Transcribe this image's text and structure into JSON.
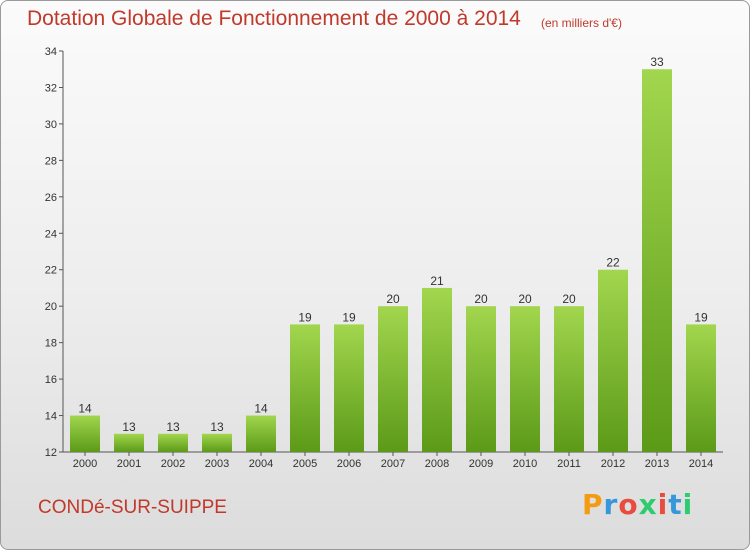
{
  "header": {
    "title": "Dotation Globale de Fonctionnement de 2000 à 2014",
    "unit": "(en milliers d'€)"
  },
  "footer": {
    "city": "CONDé-SUR-SUIPPE",
    "logo": "Proxiti",
    "logo_colors": [
      "#f39c12",
      "#3498db",
      "#e74c3c",
      "#2ecc71",
      "#e74c3c",
      "#3498db",
      "#2ecc71"
    ]
  },
  "colors": {
    "bar_top": "#a2d64e",
    "bar_bottom": "#5b9a18",
    "axis": "#555555",
    "text": "#333333",
    "brand": "#c0392b"
  },
  "chart_data": {
    "type": "bar",
    "title": "Dotation Globale de Fonctionnement de 2000 à 2014",
    "subtitle": "(en milliers d'€)",
    "categories": [
      "2000",
      "2001",
      "2002",
      "2003",
      "2004",
      "2005",
      "2006",
      "2007",
      "2008",
      "2009",
      "2010",
      "2011",
      "2012",
      "2013",
      "2014"
    ],
    "values": [
      14,
      13,
      13,
      13,
      14,
      19,
      19,
      20,
      21,
      20,
      20,
      20,
      22,
      33,
      19
    ],
    "ylim": [
      12,
      34
    ],
    "yticks": [
      12,
      14,
      16,
      18,
      20,
      22,
      24,
      26,
      28,
      30,
      32,
      34
    ],
    "grid": false,
    "legend": "none"
  }
}
